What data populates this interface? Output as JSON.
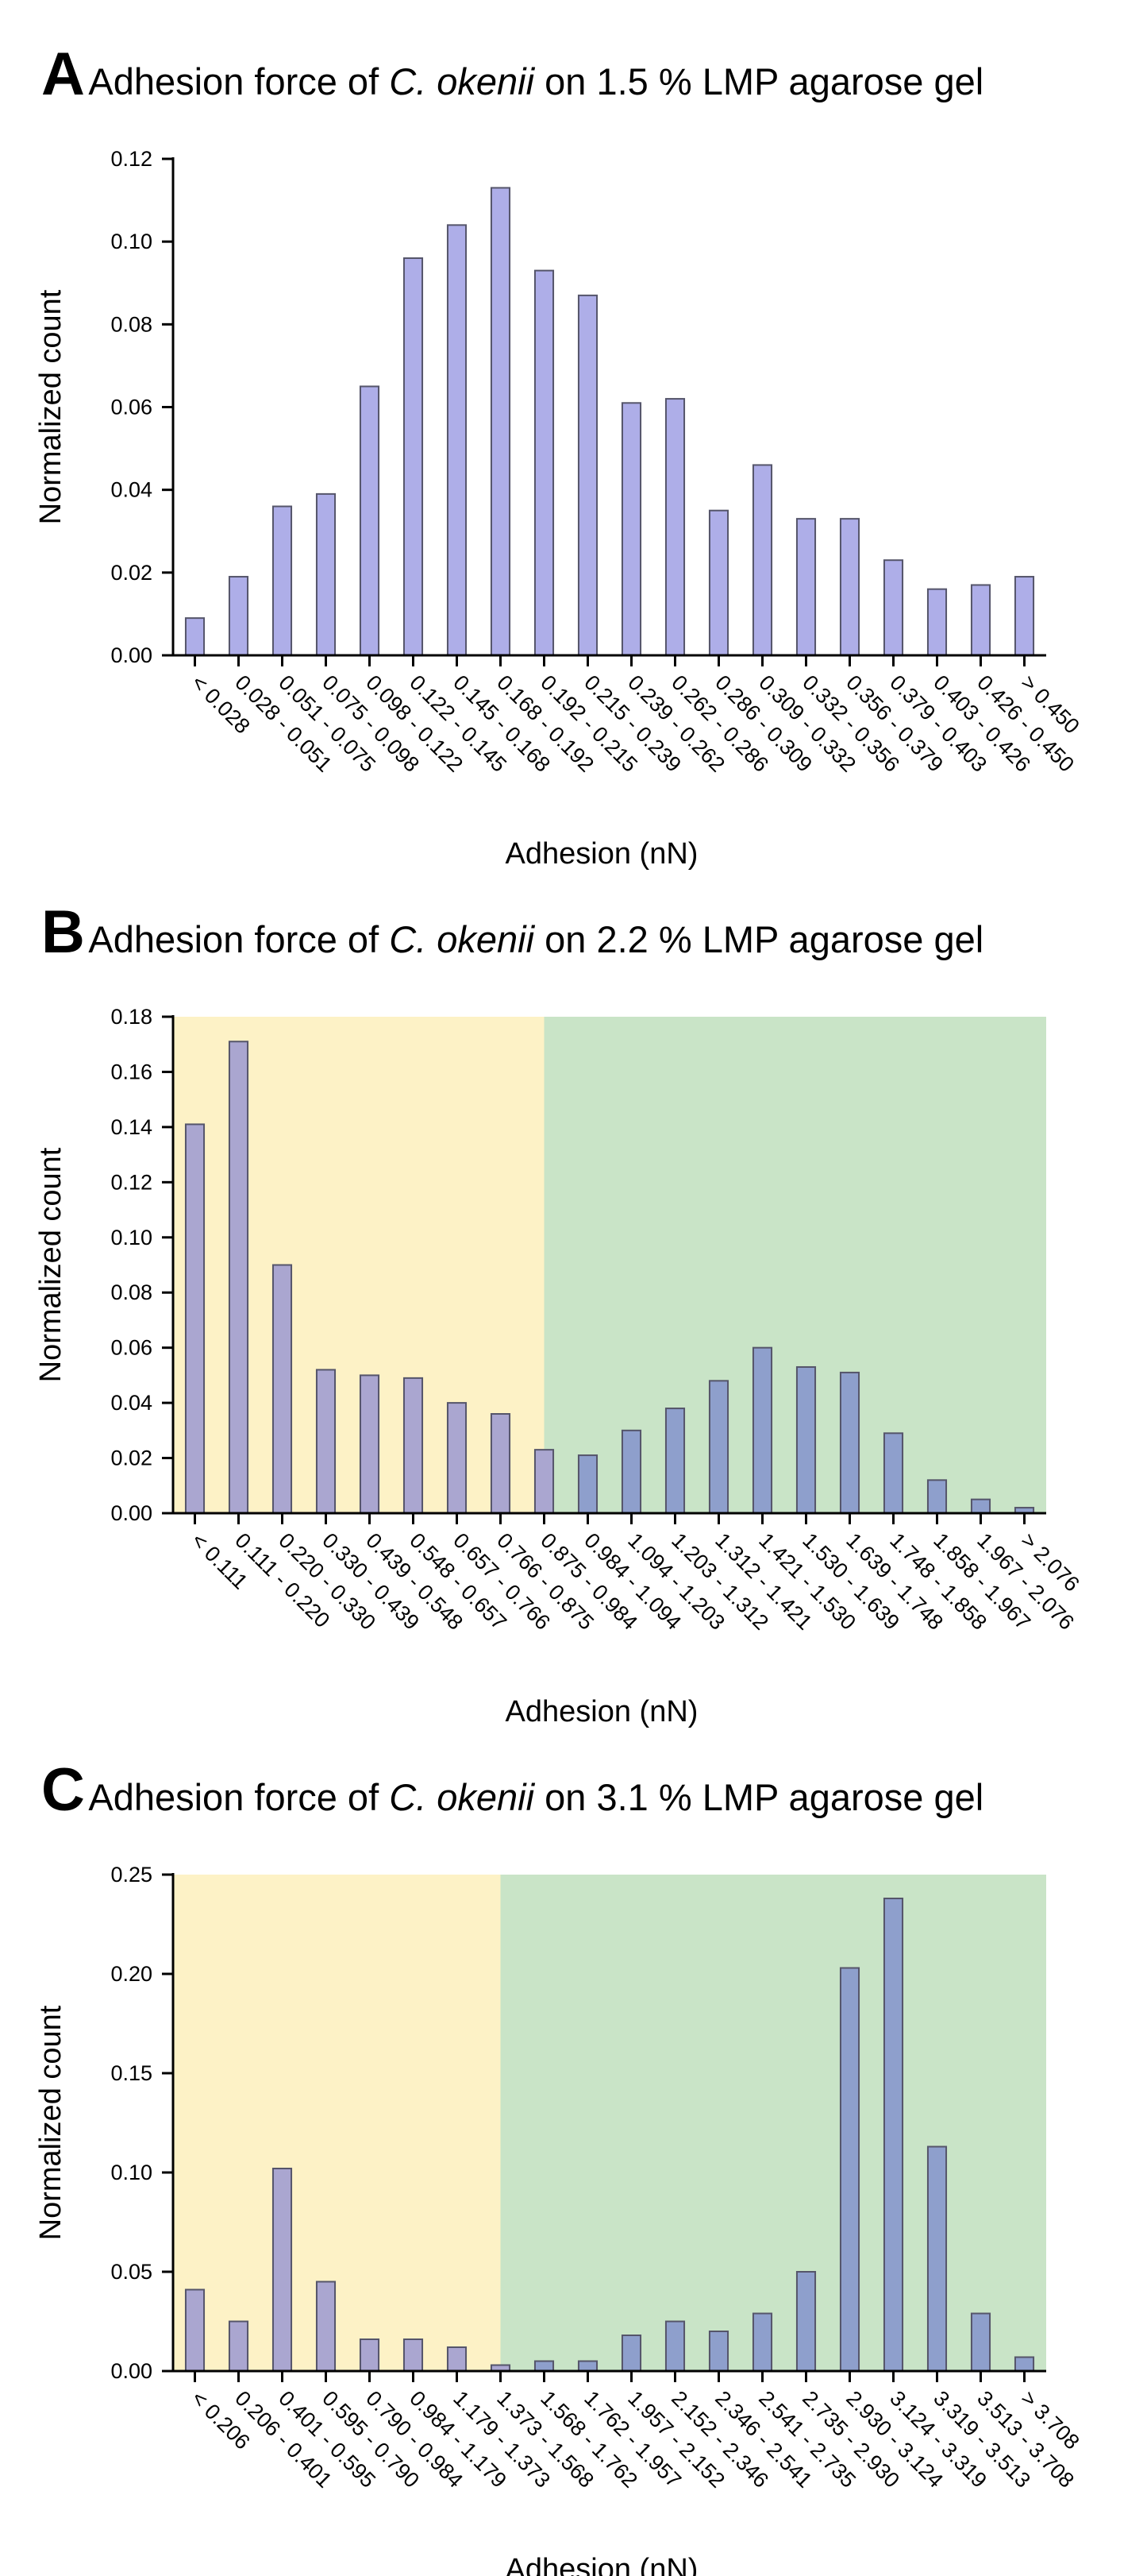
{
  "chart_data": [
    {
      "type": "bar",
      "panel_label": "A",
      "title_prefix": "Adhesion force of",
      "title_species": "C. okenii",
      "title_suffix": "on 1.5 % LMP agarose gel",
      "xlabel": "Adhesion (nN)",
      "ylabel": "Normalized count",
      "ylim": [
        0,
        0.12
      ],
      "yticks": [
        "0.00",
        "0.02",
        "0.04",
        "0.06",
        "0.08",
        "0.10",
        "0.12"
      ],
      "categories": [
        "< 0.028",
        "0.028 - 0.051",
        "0.051 - 0.075",
        "0.075 - 0.098",
        "0.098 - 0.122",
        "0.122 - 0.145",
        "0.145 - 0.168",
        "0.168 - 0.192",
        "0.192 - 0.215",
        "0.215 - 0.239",
        "0.239 - 0.262",
        "0.262 - 0.286",
        "0.286 - 0.309",
        "0.309 - 0.332",
        "0.332 - 0.356",
        "0.356 - 0.379",
        "0.379 - 0.403",
        "0.403 - 0.426",
        "0.426 - 0.450",
        "> 0.450"
      ],
      "values": [
        0.009,
        0.019,
        0.036,
        0.039,
        0.065,
        0.096,
        0.104,
        0.113,
        0.093,
        0.087,
        0.061,
        0.062,
        0.035,
        0.046,
        0.033,
        0.033,
        0.023,
        0.016,
        0.017,
        0.019
      ],
      "regions": [],
      "grid": false
    },
    {
      "type": "bar",
      "panel_label": "B",
      "title_prefix": "Adhesion force of",
      "title_species": "C. okenii",
      "title_suffix": "on 2.2 % LMP agarose gel",
      "xlabel": "Adhesion (nN)",
      "ylabel": "Normalized count",
      "ylim": [
        0,
        0.18
      ],
      "yticks": [
        "0.00",
        "0.02",
        "0.04",
        "0.06",
        "0.08",
        "0.10",
        "0.12",
        "0.14",
        "0.16",
        "0.18"
      ],
      "categories": [
        "< 0.111",
        "0.111 - 0.220",
        "0.220 - 0.330",
        "0.330 - 0.439",
        "0.439 - 0.548",
        "0.548 - 0.657",
        "0.657 - 0.766",
        "0.766 - 0.875",
        "0.875 - 0.984",
        "0.984 - 1.094",
        "1.094 - 1.203",
        "1.203 - 1.312",
        "1.312 - 1.421",
        "1.421 - 1.530",
        "1.530 - 1.639",
        "1.639 - 1.748",
        "1.748 - 1.858",
        "1.858 - 1.967",
        "1.967 - 2.076",
        "> 2.076"
      ],
      "values": [
        0.141,
        0.171,
        0.09,
        0.052,
        0.05,
        0.049,
        0.04,
        0.036,
        0.023,
        0.021,
        0.03,
        0.038,
        0.048,
        0.06,
        0.053,
        0.051,
        0.029,
        0.012,
        0.005,
        0.002
      ],
      "regions": [
        {
          "from_bin": 0,
          "to_bin": 8.5,
          "color": "#fdf2c6"
        },
        {
          "from_bin": 8.5,
          "to_bin": 20,
          "color": "#c9e4c7"
        }
      ],
      "grid": false
    },
    {
      "type": "bar",
      "panel_label": "C",
      "title_prefix": "Adhesion force of",
      "title_species": "C. okenii",
      "title_suffix": "on 3.1 % LMP agarose gel",
      "xlabel": "Adhesion (nN)",
      "ylabel": "Normalized count",
      "ylim": [
        0,
        0.25
      ],
      "yticks": [
        "0.00",
        "0.05",
        "0.10",
        "0.15",
        "0.20",
        "0.25"
      ],
      "categories": [
        "< 0.206",
        "0.206 - 0.401",
        "0.401 - 0.595",
        "0.595 - 0.790",
        "0.790 - 0.984",
        "0.984 - 1.179",
        "1.179 - 1.373",
        "1.373 - 1.568",
        "1.568 - 1.762",
        "1.762 - 1.957",
        "1.957 - 2.152",
        "2.152 - 2.346",
        "2.346 - 2.541",
        "2.541 - 2.735",
        "2.735 - 2.930",
        "2.930 - 3.124",
        "3.124 - 3.319",
        "3.319 - 3.513",
        "3.513 - 3.708",
        "> 3.708"
      ],
      "values": [
        0.041,
        0.025,
        0.102,
        0.045,
        0.016,
        0.016,
        0.012,
        0.003,
        0.005,
        0.005,
        0.018,
        0.025,
        0.02,
        0.029,
        0.05,
        0.203,
        0.238,
        0.113,
        0.029,
        0.007
      ],
      "regions": [
        {
          "from_bin": 0,
          "to_bin": 7.5,
          "color": "#fdf2c6"
        },
        {
          "from_bin": 7.5,
          "to_bin": 20,
          "color": "#c9e4c7"
        }
      ],
      "grid": false
    }
  ],
  "colors": {
    "bar_fill": "#aeaee8",
    "bar_fill_on_yellow": "#aaa6d0",
    "bar_fill_on_green": "#8e9fcc",
    "bar_stroke": "#55556a",
    "axis": "#000000"
  }
}
